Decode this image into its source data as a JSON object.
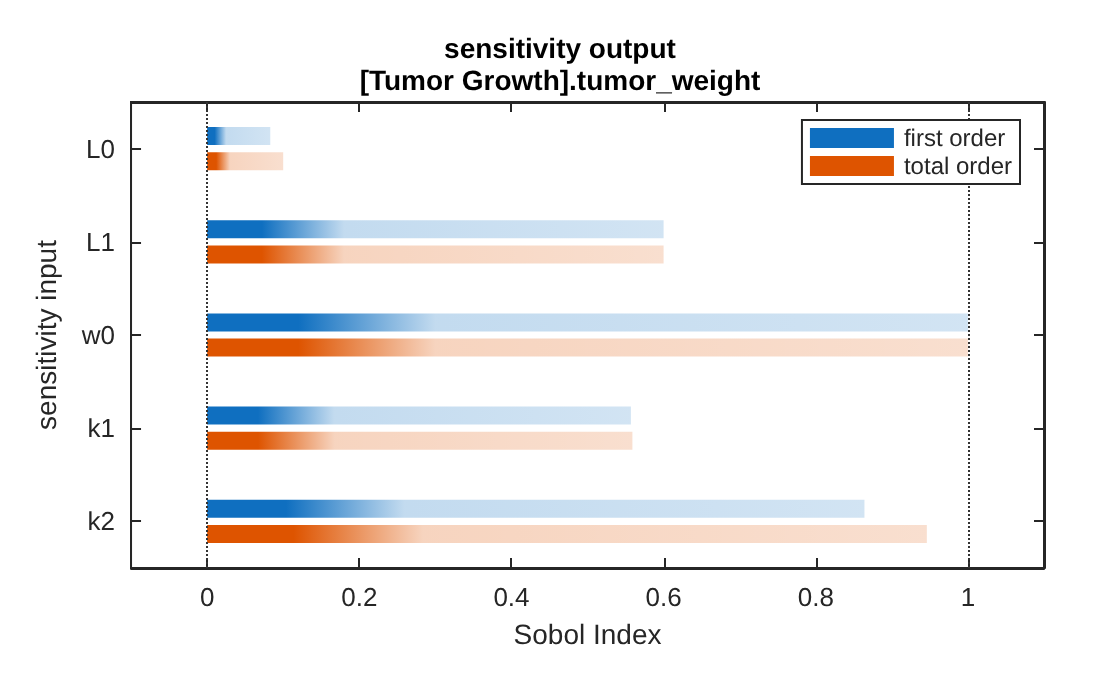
{
  "chart_data": {
    "type": "bar",
    "orientation": "horizontal",
    "title": "sensitivity output",
    "subtitle": "[Tumor Growth].tumor_weight",
    "xlabel": "Sobol Index",
    "ylabel": "sensitivity input",
    "categories": [
      "L0",
      "L1",
      "w0",
      "k1",
      "k2"
    ],
    "series": [
      {
        "name": "first order",
        "color": "#0f6fc0",
        "values": [
          0.083,
          0.6,
          1.0,
          0.557,
          0.864
        ]
      },
      {
        "name": "total order",
        "color": "#de5400",
        "values": [
          0.1,
          0.6,
          1.0,
          0.559,
          0.946
        ]
      }
    ],
    "xlim": [
      -0.1,
      1.1
    ],
    "xticks": [
      0,
      0.2,
      0.4,
      0.6,
      0.8,
      1
    ],
    "ref_lines": [
      {
        "axis": "x",
        "value": 0,
        "line_style": "dotted",
        "color": "#333333"
      },
      {
        "axis": "x",
        "value": 1,
        "line_style": "dotted",
        "color": "#333333"
      }
    ],
    "legend": "top right",
    "grid": false
  }
}
